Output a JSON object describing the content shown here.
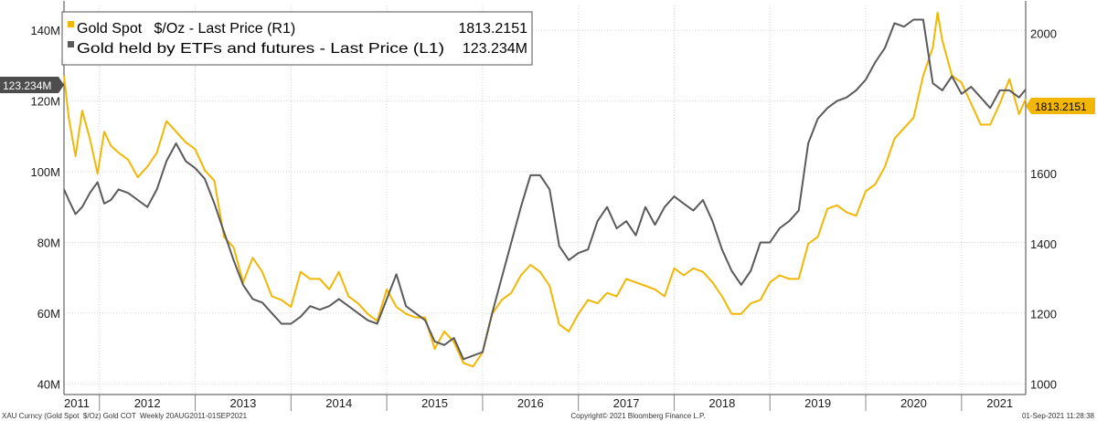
{
  "chart_data": {
    "type": "line",
    "legend": {
      "placement": "top-left",
      "entries": [
        {
          "label": "Gold Spot   $/Oz - Last Price (R1)",
          "value": "1813.2151"
        },
        {
          "label": "Gold held by ETFs and futures - Last Price (L1)",
          "value": "123.234M"
        }
      ]
    },
    "last_value_tags": {
      "left": "123.234M",
      "right": "1813.2151"
    },
    "left_axis": {
      "ticks": [
        "40M",
        "60M",
        "80M",
        "100M",
        "120M",
        "140M"
      ],
      "tick_values": [
        40,
        60,
        80,
        100,
        120,
        140
      ],
      "range": [
        37,
        147
      ],
      "unit": "M"
    },
    "right_axis": {
      "ticks": [
        "1000",
        "1200",
        "1400",
        "1600",
        "1800",
        "2000"
      ],
      "tick_values": [
        1000,
        1200,
        1400,
        1600,
        1800,
        2000
      ],
      "range": [
        970,
        2080
      ]
    },
    "x_axis": {
      "range": [
        2011.63,
        2021.67
      ],
      "year_labels": [
        "2011",
        "2012",
        "2013",
        "2014",
        "2015",
        "2016",
        "2017",
        "2018",
        "2019",
        "2020",
        "2021"
      ],
      "year_label_positions": [
        2011.6,
        2012.5,
        2013.5,
        2014.5,
        2015.5,
        2016.5,
        2017.5,
        2018.5,
        2019.5,
        2020.5,
        2021.4
      ]
    },
    "grid": true,
    "series": [
      {
        "name": "Gold Spot   $/Oz - Last Price (R1)",
        "axis": "right",
        "color": "#f2b705",
        "x": [
          2011.63,
          2011.68,
          2011.75,
          2011.82,
          2011.9,
          2011.98,
          2012.05,
          2012.12,
          2012.2,
          2012.3,
          2012.4,
          2012.5,
          2012.6,
          2012.7,
          2012.8,
          2012.9,
          2013.0,
          2013.1,
          2013.2,
          2013.3,
          2013.4,
          2013.5,
          2013.6,
          2013.7,
          2013.8,
          2013.9,
          2014.0,
          2014.1,
          2014.2,
          2014.3,
          2014.4,
          2014.5,
          2014.6,
          2014.7,
          2014.8,
          2014.9,
          2015.0,
          2015.1,
          2015.2,
          2015.3,
          2015.4,
          2015.5,
          2015.6,
          2015.7,
          2015.8,
          2015.9,
          2016.0,
          2016.1,
          2016.2,
          2016.3,
          2016.4,
          2016.5,
          2016.6,
          2016.7,
          2016.8,
          2016.9,
          2017.0,
          2017.1,
          2017.2,
          2017.3,
          2017.4,
          2017.5,
          2017.6,
          2017.7,
          2017.8,
          2017.9,
          2018.0,
          2018.1,
          2018.2,
          2018.3,
          2018.4,
          2018.5,
          2018.6,
          2018.7,
          2018.8,
          2018.9,
          2019.0,
          2019.1,
          2019.2,
          2019.3,
          2019.4,
          2019.5,
          2019.6,
          2019.7,
          2019.8,
          2019.9,
          2020.0,
          2020.1,
          2020.2,
          2020.3,
          2020.4,
          2020.5,
          2020.6,
          2020.7,
          2020.75,
          2020.8,
          2020.9,
          2021.0,
          2021.1,
          2021.2,
          2021.3,
          2021.4,
          2021.5,
          2021.6,
          2021.67
        ],
        "values": [
          1880,
          1760,
          1650,
          1780,
          1700,
          1600,
          1720,
          1680,
          1660,
          1640,
          1590,
          1620,
          1660,
          1750,
          1720,
          1690,
          1670,
          1610,
          1580,
          1420,
          1390,
          1290,
          1360,
          1320,
          1250,
          1240,
          1220,
          1320,
          1300,
          1300,
          1270,
          1320,
          1250,
          1230,
          1200,
          1180,
          1270,
          1220,
          1200,
          1190,
          1190,
          1100,
          1150,
          1120,
          1060,
          1050,
          1090,
          1200,
          1240,
          1260,
          1310,
          1340,
          1320,
          1280,
          1170,
          1150,
          1200,
          1240,
          1230,
          1260,
          1250,
          1300,
          1290,
          1280,
          1270,
          1250,
          1330,
          1310,
          1330,
          1320,
          1290,
          1250,
          1200,
          1200,
          1230,
          1240,
          1290,
          1310,
          1300,
          1300,
          1400,
          1420,
          1500,
          1510,
          1490,
          1480,
          1550,
          1570,
          1620,
          1700,
          1730,
          1760,
          1880,
          1960,
          2060,
          1980,
          1880,
          1860,
          1800,
          1740,
          1740,
          1800,
          1870,
          1770,
          1813.2151
        ]
      },
      {
        "name": "Gold held by ETFs and futures - Last Price (L1)",
        "axis": "left",
        "color": "#5a5a5a",
        "x": [
          2011.63,
          2011.68,
          2011.75,
          2011.82,
          2011.9,
          2011.98,
          2012.05,
          2012.12,
          2012.2,
          2012.3,
          2012.4,
          2012.5,
          2012.6,
          2012.7,
          2012.8,
          2012.9,
          2013.0,
          2013.1,
          2013.2,
          2013.3,
          2013.4,
          2013.5,
          2013.6,
          2013.7,
          2013.8,
          2013.9,
          2014.0,
          2014.1,
          2014.2,
          2014.3,
          2014.4,
          2014.5,
          2014.6,
          2014.7,
          2014.8,
          2014.9,
          2015.0,
          2015.1,
          2015.2,
          2015.3,
          2015.4,
          2015.5,
          2015.6,
          2015.7,
          2015.8,
          2015.9,
          2016.0,
          2016.1,
          2016.2,
          2016.3,
          2016.4,
          2016.5,
          2016.6,
          2016.7,
          2016.8,
          2016.9,
          2017.0,
          2017.1,
          2017.2,
          2017.3,
          2017.4,
          2017.5,
          2017.6,
          2017.7,
          2017.8,
          2017.9,
          2018.0,
          2018.1,
          2018.2,
          2018.3,
          2018.4,
          2018.5,
          2018.6,
          2018.7,
          2018.8,
          2018.9,
          2019.0,
          2019.1,
          2019.2,
          2019.3,
          2019.4,
          2019.5,
          2019.6,
          2019.7,
          2019.8,
          2019.9,
          2020.0,
          2020.1,
          2020.2,
          2020.3,
          2020.4,
          2020.5,
          2020.6,
          2020.7,
          2020.8,
          2020.9,
          2021.0,
          2021.1,
          2021.2,
          2021.3,
          2021.4,
          2021.5,
          2021.6,
          2021.67
        ],
        "values": [
          95,
          92,
          88,
          90,
          94,
          97,
          91,
          92,
          95,
          94,
          92,
          90,
          95,
          103,
          108,
          103,
          101,
          98,
          91,
          83,
          75,
          68,
          64,
          63,
          60,
          57,
          57,
          59,
          62,
          61,
          62,
          64,
          62,
          60,
          58,
          57,
          64,
          71,
          62,
          60,
          58,
          52,
          51,
          53,
          47,
          48,
          49,
          60,
          70,
          80,
          90,
          99,
          99,
          95,
          79,
          75,
          77,
          78,
          86,
          90,
          84,
          86,
          82,
          90,
          85,
          90,
          93,
          91,
          89,
          92,
          86,
          78,
          72,
          68,
          72,
          80,
          80,
          84,
          86,
          89,
          108,
          115,
          118,
          120,
          121,
          123,
          126,
          131,
          135,
          142,
          141,
          143,
          143,
          125,
          123,
          127,
          122,
          124,
          121,
          118,
          123,
          123,
          121,
          123.234
        ]
      }
    ]
  },
  "footer": {
    "left": "XAU Curncy (Gold Spot  $/Oz) Gold COT  Weekly 20AUG2011-01SEP2021",
    "center": "Copyright© 2021 Bloomberg Finance L.P.",
    "right": "01-Sep-2021 11:28:38"
  }
}
